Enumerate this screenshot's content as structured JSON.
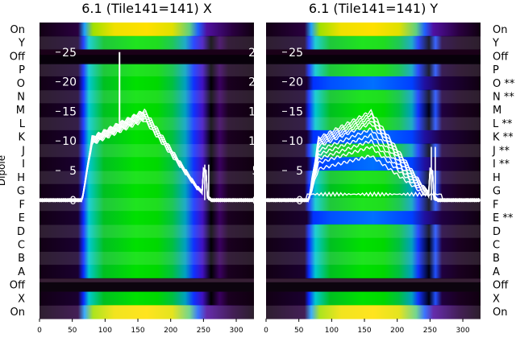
{
  "chart_data": [
    {
      "type": "heatmap",
      "title": "6.1 (Tile141=141) X",
      "ylabel": "Dipole",
      "x_ticks": [
        "0",
        "50",
        "100",
        "150",
        "200",
        "250",
        "300"
      ],
      "xlim": [
        0,
        327
      ],
      "dipole_labels": [
        "On",
        "Y",
        "Off",
        "P",
        "O",
        "N",
        "M",
        "L",
        "K",
        "J",
        "I",
        "H",
        "G",
        "F",
        "E",
        "D",
        "C",
        "B",
        "A",
        "Off",
        "X",
        "On"
      ],
      "overlay_ticks": [
        "25",
        "20",
        "15",
        "10",
        "5",
        "0"
      ],
      "overlay_ylim": [
        -20,
        30
      ],
      "overlay_ticks_side": "left",
      "spike": {
        "x": 122,
        "y": 25
      },
      "curve_peaks": [
        13.5,
        13.8,
        14.0,
        14.2,
        14.4,
        14.6,
        14.8,
        15.0,
        15.2
      ]
    },
    {
      "type": "heatmap",
      "title": "6.1 (Tile141=141) Y",
      "ylabel": "",
      "x_ticks": [
        "0",
        "50",
        "100",
        "150",
        "200",
        "250",
        "300"
      ],
      "xlim": [
        0,
        327
      ],
      "dipole_labels": [
        "On",
        "Y",
        "Off",
        "P",
        "O **",
        "N **",
        "M",
        "L **",
        "K **",
        "J **",
        "I **",
        "H",
        "G",
        "F",
        "E **",
        "D",
        "C",
        "B",
        "A",
        "Off",
        "X",
        "On"
      ],
      "overlay_ticks": [
        "25",
        "20",
        "15",
        "10",
        "5",
        "0"
      ],
      "overlay_ylim": [
        -20,
        30
      ],
      "overlay_ticks_side": "left",
      "curve_peaks": [
        7.5,
        9.0,
        10.0,
        11.0,
        12.0,
        13.0,
        13.5,
        14.0,
        14.5,
        15.0
      ],
      "flat_curve": 1.0
    }
  ]
}
